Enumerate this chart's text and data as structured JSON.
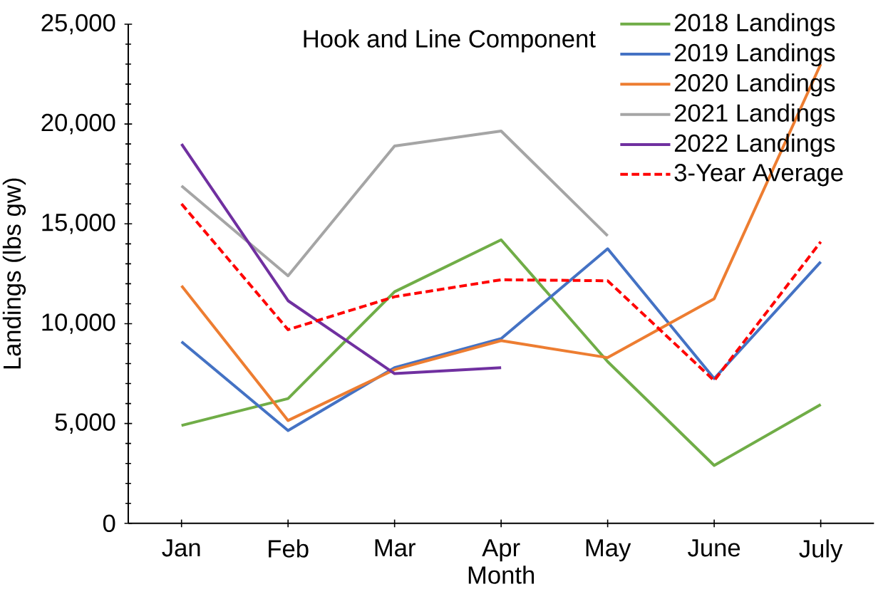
{
  "chart_data": {
    "type": "line",
    "title": "Hook and Line Component",
    "xlabel": "Month",
    "ylabel": "Landings (lbs gw)",
    "categories": [
      "Jan",
      "Feb",
      "Mar",
      "Apr",
      "May",
      "June",
      "July"
    ],
    "series": [
      {
        "name": "2018 Landings",
        "color": "#70ad47",
        "values": [
          4900,
          6250,
          11600,
          14200,
          8100,
          2900,
          5950
        ]
      },
      {
        "name": "2019 Landings",
        "color": "#4472c4",
        "values": [
          9100,
          4650,
          7800,
          9250,
          13750,
          7250,
          13100
        ]
      },
      {
        "name": "2020 Landings",
        "color": "#ed7d31",
        "values": [
          11900,
          5150,
          7700,
          9150,
          8300,
          11250,
          23000
        ]
      },
      {
        "name": "2021 Landings",
        "color": "#a5a5a5",
        "values": [
          16900,
          12400,
          18900,
          19650,
          14400,
          null,
          null
        ]
      },
      {
        "name": "2022 Landings",
        "color": "#7030a0",
        "values": [
          19000,
          11150,
          7500,
          7800,
          null,
          null,
          null
        ]
      },
      {
        "name": "3-Year Average",
        "color": "#ff0000",
        "line_style": "dashed",
        "values": [
          16000,
          9700,
          11350,
          12200,
          12150,
          7150,
          14100
        ]
      }
    ],
    "ylim": [
      0,
      25000
    ],
    "yticks": [
      {
        "value": 0,
        "label": "0"
      },
      {
        "value": 5000,
        "label": "5,000"
      },
      {
        "value": 10000,
        "label": "10,000"
      },
      {
        "value": 15000,
        "label": "15,000"
      },
      {
        "value": 20000,
        "label": "20,000"
      },
      {
        "value": 25000,
        "label": "25,000"
      }
    ],
    "grid": false,
    "legend": "top right"
  }
}
